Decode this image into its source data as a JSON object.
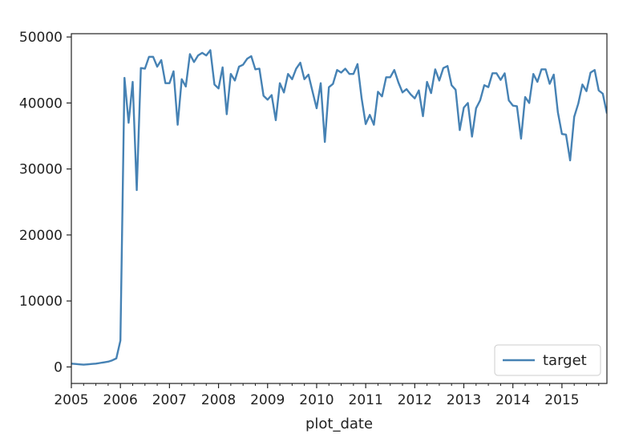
{
  "chart_data": {
    "type": "line",
    "title": "",
    "xlabel": "plot_date",
    "ylabel": "",
    "xlim": [
      2005.0,
      2015.917
    ],
    "ylim": [
      -2500,
      50500
    ],
    "x_ticks": [
      {
        "value": 2005,
        "label": "2005"
      },
      {
        "value": 2006,
        "label": "2006"
      },
      {
        "value": 2007,
        "label": "2007"
      },
      {
        "value": 2008,
        "label": "2008"
      },
      {
        "value": 2009,
        "label": "2009"
      },
      {
        "value": 2010,
        "label": "2010"
      },
      {
        "value": 2011,
        "label": "2011"
      },
      {
        "value": 2012,
        "label": "2012"
      },
      {
        "value": 2013,
        "label": "2013"
      },
      {
        "value": 2014,
        "label": "2014"
      },
      {
        "value": 2015,
        "label": "2015"
      }
    ],
    "y_ticks": [
      {
        "value": 0,
        "label": "0"
      },
      {
        "value": 10000,
        "label": "10000"
      },
      {
        "value": 20000,
        "label": "20000"
      },
      {
        "value": 30000,
        "label": "30000"
      },
      {
        "value": 40000,
        "label": "40000"
      },
      {
        "value": 50000,
        "label": "50000"
      }
    ],
    "grid": false,
    "legend": {
      "position": "bottom-right",
      "entries": [
        "target"
      ]
    },
    "colors": {
      "line": "#4682b4",
      "axes": "#222222",
      "legend_border": "#cccccc"
    },
    "series": [
      {
        "name": "target",
        "x": [
          2005.0,
          2005.083,
          2005.167,
          2005.25,
          2005.333,
          2005.417,
          2005.5,
          2005.583,
          2005.667,
          2005.75,
          2005.833,
          2005.917,
          2006.0,
          2006.083,
          2006.167,
          2006.25,
          2006.333,
          2006.417,
          2006.5,
          2006.583,
          2006.667,
          2006.75,
          2006.833,
          2006.917,
          2007.0,
          2007.083,
          2007.167,
          2007.25,
          2007.333,
          2007.417,
          2007.5,
          2007.583,
          2007.667,
          2007.75,
          2007.833,
          2007.917,
          2008.0,
          2008.083,
          2008.167,
          2008.25,
          2008.333,
          2008.417,
          2008.5,
          2008.583,
          2008.667,
          2008.75,
          2008.833,
          2008.917,
          2009.0,
          2009.083,
          2009.167,
          2009.25,
          2009.333,
          2009.417,
          2009.5,
          2009.583,
          2009.667,
          2009.75,
          2009.833,
          2009.917,
          2010.0,
          2010.083,
          2010.167,
          2010.25,
          2010.333,
          2010.417,
          2010.5,
          2010.583,
          2010.667,
          2010.75,
          2010.833,
          2010.917,
          2011.0,
          2011.083,
          2011.167,
          2011.25,
          2011.333,
          2011.417,
          2011.5,
          2011.583,
          2011.667,
          2011.75,
          2011.833,
          2011.917,
          2012.0,
          2012.083,
          2012.167,
          2012.25,
          2012.333,
          2012.417,
          2012.5,
          2012.583,
          2012.667,
          2012.75,
          2012.833,
          2012.917,
          2013.0,
          2013.083,
          2013.167,
          2013.25,
          2013.333,
          2013.417,
          2013.5,
          2013.583,
          2013.667,
          2013.75,
          2013.833,
          2013.917,
          2014.0,
          2014.083,
          2014.167,
          2014.25,
          2014.333,
          2014.417,
          2014.5,
          2014.583,
          2014.667,
          2014.75,
          2014.833,
          2014.917,
          2015.0,
          2015.083,
          2015.167,
          2015.25,
          2015.333,
          2015.417,
          2015.5,
          2015.583,
          2015.667,
          2015.75,
          2015.833,
          2015.917
        ],
        "values": [
          500,
          450,
          400,
          350,
          400,
          450,
          500,
          600,
          700,
          800,
          1000,
          1300,
          4000,
          43800,
          37000,
          43200,
          26800,
          45300,
          45200,
          47000,
          47000,
          45500,
          46500,
          43000,
          43000,
          44800,
          36700,
          43600,
          42500,
          47400,
          46200,
          47200,
          47600,
          47200,
          48000,
          42800,
          42200,
          45400,
          38300,
          44400,
          43400,
          45500,
          45800,
          46700,
          47100,
          45100,
          45200,
          41100,
          40500,
          41200,
          37400,
          43000,
          41600,
          44400,
          43600,
          45200,
          46100,
          43600,
          44300,
          41700,
          39200,
          43000,
          34100,
          42400,
          42900,
          45000,
          44600,
          45200,
          44400,
          44400,
          45900,
          40700,
          36800,
          38200,
          36700,
          41700,
          41000,
          43900,
          43900,
          45000,
          43100,
          41600,
          42100,
          41300,
          40700,
          41900,
          38000,
          43200,
          41500,
          45100,
          43400,
          45300,
          45600,
          42700,
          42000,
          35900,
          39300,
          40000,
          34900,
          39200,
          40400,
          42700,
          42400,
          44500,
          44500,
          43500,
          44500,
          40400,
          39600,
          39500,
          34600,
          40900,
          40000,
          44400,
          43200,
          45100,
          45100,
          42900,
          44300,
          38600,
          35300,
          35200,
          31300,
          37900,
          39900,
          42800,
          41800,
          44600,
          45000,
          41900,
          41400,
          38400
        ]
      }
    ]
  }
}
